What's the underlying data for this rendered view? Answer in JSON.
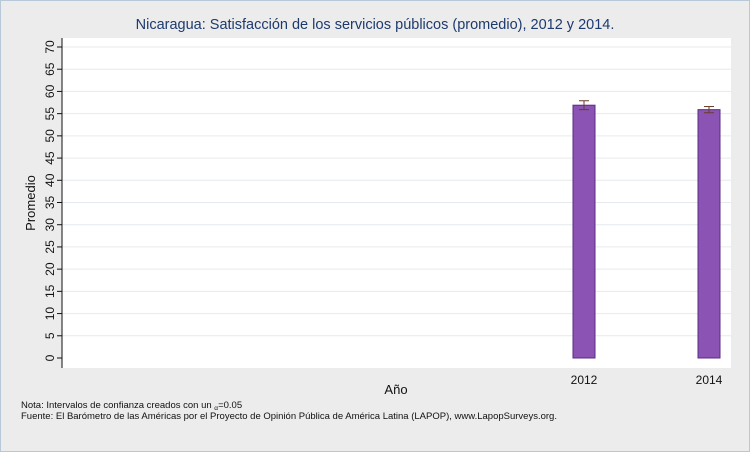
{
  "chart_data": {
    "type": "bar",
    "title": "Nicaragua: Satisfacción de los servicios públicos (promedio), 2012 y 2014.",
    "xlabel": "Año",
    "ylabel": "Promedio",
    "categories": [
      "2012",
      "2014"
    ],
    "values": [
      56.9,
      55.9
    ],
    "error_bars": [
      [
        55.9,
        57.9
      ],
      [
        55.2,
        56.6
      ]
    ],
    "ylim": [
      0,
      70
    ],
    "yticks": [
      0,
      5,
      10,
      15,
      20,
      25,
      30,
      35,
      40,
      45,
      50,
      55,
      60,
      65,
      70
    ],
    "bar_color": "#8b54b4",
    "bar_edge_color": "#5a2d82",
    "grid": true
  },
  "notes": {
    "prefix": "Nota: Intervalos de confianza creados con un ",
    "alpha_symbol": "α",
    "alpha_value": "=0.05",
    "source": "Fuente: El Barómetro de las Américas por el Proyecto de Opinión Pública de América Latina (LAPOP), www.LapopSurveys.org."
  }
}
